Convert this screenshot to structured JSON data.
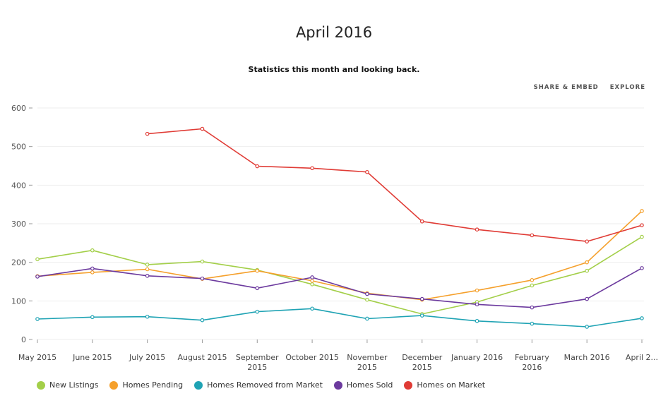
{
  "chart_data": {
    "type": "line",
    "title": "April 2016",
    "subtitle": "Statistics this month and looking back.",
    "categories": [
      "May 2015",
      "June 2015",
      "July 2015",
      "August 2015",
      "September 2015",
      "October 2015",
      "November 2015",
      "December 2015",
      "January 2016",
      "February 2016",
      "March 2016",
      "April 2..."
    ],
    "ylim": [
      0,
      600
    ],
    "yticks": [
      0,
      100,
      200,
      300,
      400,
      500,
      600
    ],
    "grid": true,
    "legend_position": "bottom-left",
    "series": [
      {
        "name": "New Listings",
        "color": "#a3cf49",
        "values": [
          208,
          231,
          194,
          202,
          180,
          143,
          103,
          66,
          97,
          140,
          178,
          266
        ]
      },
      {
        "name": "Homes Pending",
        "color": "#f5a02c",
        "values": [
          164,
          174,
          182,
          157,
          178,
          152,
          120,
          103,
          127,
          154,
          200,
          333
        ]
      },
      {
        "name": "Homes Removed from Market",
        "color": "#1fa3b4",
        "values": [
          53,
          58,
          59,
          50,
          72,
          80,
          54,
          62,
          48,
          41,
          33,
          55
        ]
      },
      {
        "name": "Homes Sold",
        "color": "#6c3a9e",
        "values": [
          163,
          184,
          165,
          158,
          133,
          161,
          118,
          105,
          91,
          83,
          105,
          185
        ]
      },
      {
        "name": "Homes on Market",
        "color": "#e03b35",
        "values": [
          null,
          null,
          533,
          546,
          449,
          444,
          434,
          306,
          285,
          270,
          254,
          296
        ]
      }
    ]
  },
  "actions": {
    "share_label": "SHARE & EMBED",
    "explore_label": "EXPLORE"
  }
}
